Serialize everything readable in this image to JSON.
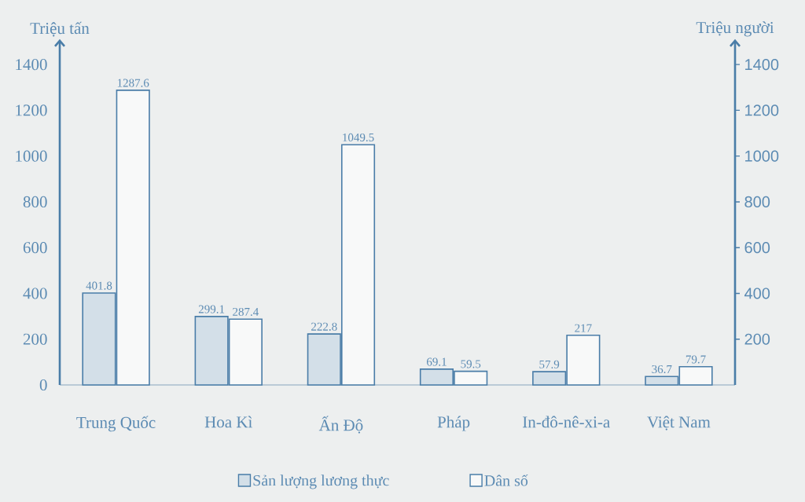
{
  "chart_data": {
    "type": "bar",
    "categories": [
      "Trung Quốc",
      "Hoa Kì",
      "Ấn Độ",
      "Pháp",
      "In-đô-nê-xi-a",
      "Việt Nam"
    ],
    "ylabel": "Triệu tấn",
    "y2label": "Triệu người",
    "series": [
      {
        "name": "Sản lượng lương thực",
        "color": "#d3dfe8",
        "values": [
          401.8,
          299.1,
          222.8,
          69.1,
          57.9,
          36.7
        ]
      },
      {
        "name": "Dân số",
        "color": "#f8f9f9",
        "axis": "y2",
        "values": [
          1287.6,
          287.4,
          1049.5,
          59.5,
          217,
          79.7
        ]
      }
    ],
    "ylim": [
      0,
      1500
    ],
    "yticks": [
      0,
      200,
      400,
      600,
      800,
      1000,
      1200,
      1400
    ],
    "y2lim": [
      0,
      1500
    ],
    "y2ticks": [
      200,
      400,
      600,
      800,
      1000,
      1200,
      1400
    ],
    "data_labels": true,
    "legend": "bottom",
    "grid": false
  }
}
